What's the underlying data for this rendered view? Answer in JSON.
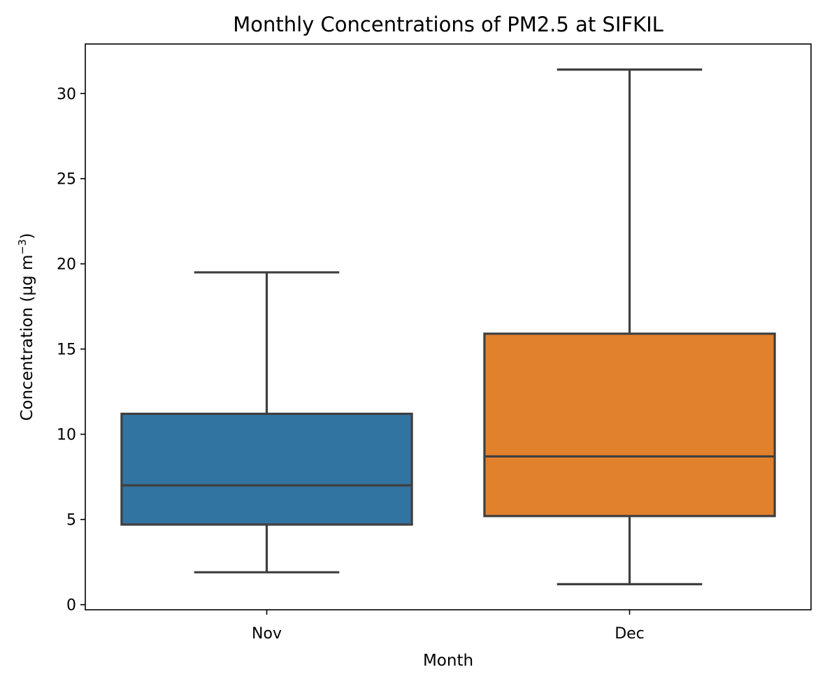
{
  "chart_data": {
    "type": "box",
    "title": "Monthly Concentrations of PM2.5 at SIFKIL",
    "xlabel": "Month",
    "ylabel": "Concentration (µg m",
    "ylabel_superscript": "−3",
    "ylabel_suffix": ")",
    "ylim": [
      -0.3,
      32.9
    ],
    "yticks": [
      0,
      5,
      10,
      15,
      20,
      25,
      30
    ],
    "categories": [
      "Nov",
      "Dec"
    ],
    "boxes": [
      {
        "category": "Nov",
        "whisker_low": 1.9,
        "q1": 4.7,
        "median": 7.0,
        "q3": 11.2,
        "whisker_high": 19.5,
        "color": "#3274a1"
      },
      {
        "category": "Dec",
        "whisker_low": 1.2,
        "q1": 5.2,
        "median": 8.7,
        "q3": 15.9,
        "whisker_high": 31.4,
        "color": "#e1812c"
      }
    ],
    "line_color": "#3f3f3f",
    "grid": false,
    "legend": "none"
  }
}
